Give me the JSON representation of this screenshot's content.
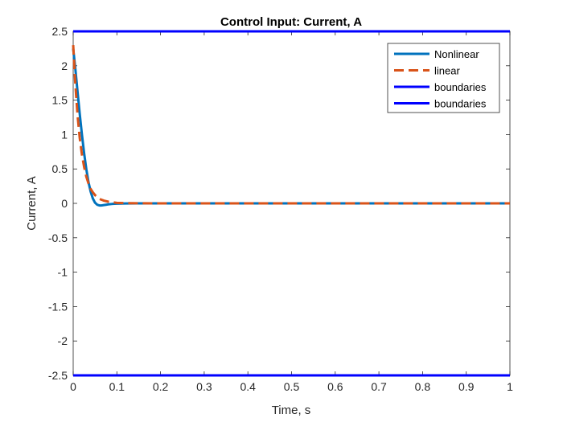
{
  "chart_data": {
    "type": "line",
    "title": "Control Input: Current, A",
    "xlabel": "Time, s",
    "ylabel": "Current, A",
    "xlim": [
      0,
      1
    ],
    "ylim": [
      -2.5,
      2.5
    ],
    "xticks": [
      0,
      0.1,
      0.2,
      0.3,
      0.4,
      0.5,
      0.6,
      0.7,
      0.8,
      0.9,
      1
    ],
    "xtick_labels": [
      "0",
      "0.1",
      "0.2",
      "0.3",
      "0.4",
      "0.5",
      "0.6",
      "0.7",
      "0.8",
      "0.9",
      "1"
    ],
    "yticks": [
      -2.5,
      -2,
      -1.5,
      -1,
      -0.5,
      0,
      0.5,
      1,
      1.5,
      2,
      2.5
    ],
    "ytick_labels": [
      "-2.5",
      "-2",
      "-1.5",
      "-1",
      "-0.5",
      "0",
      "0.5",
      "1",
      "1.5",
      "2",
      "2.5"
    ],
    "grid": false,
    "legend_position": "top-right",
    "series": [
      {
        "name": "Nonlinear",
        "color": "#0072BD",
        "style": "solid",
        "x": [
          0,
          0.005,
          0.01,
          0.015,
          0.02,
          0.025,
          0.03,
          0.035,
          0.04,
          0.045,
          0.05,
          0.055,
          0.06,
          0.065,
          0.07,
          0.075,
          0.08,
          0.09,
          0.1,
          0.12,
          0.15,
          0.2,
          0.3,
          0.5,
          0.7,
          1.0
        ],
        "y": [
          2.25,
          1.95,
          1.62,
          1.3,
          1.0,
          0.73,
          0.5,
          0.31,
          0.17,
          0.07,
          0.01,
          -0.02,
          -0.03,
          -0.03,
          -0.025,
          -0.02,
          -0.015,
          -0.008,
          -0.004,
          -0.001,
          0,
          0,
          0,
          0,
          0,
          0
        ]
      },
      {
        "name": "linear",
        "color": "#D95319",
        "style": "dashed",
        "x": [
          0,
          0.005,
          0.01,
          0.015,
          0.02,
          0.025,
          0.03,
          0.035,
          0.04,
          0.045,
          0.05,
          0.055,
          0.06,
          0.07,
          0.08,
          0.09,
          0.1,
          0.12,
          0.15,
          0.2,
          0.3,
          0.5,
          0.7,
          1.0
        ],
        "y": [
          2.3,
          1.72,
          1.28,
          0.95,
          0.71,
          0.53,
          0.39,
          0.29,
          0.21,
          0.16,
          0.12,
          0.09,
          0.065,
          0.04,
          0.025,
          0.015,
          0.008,
          0.003,
          0.001,
          0,
          0,
          0,
          0,
          0
        ]
      },
      {
        "name": "boundaries",
        "color": "#0000FF",
        "style": "solid",
        "x": [
          0,
          1
        ],
        "y": [
          2.5,
          2.5
        ]
      },
      {
        "name": "boundaries",
        "color": "#0000FF",
        "style": "solid",
        "x": [
          0,
          1
        ],
        "y": [
          -2.5,
          -2.5
        ]
      }
    ]
  }
}
